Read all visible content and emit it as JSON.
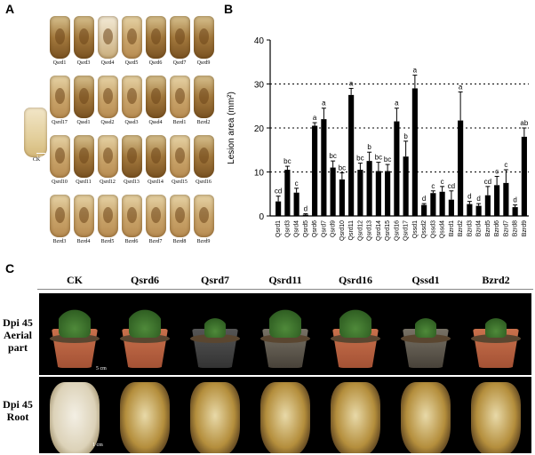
{
  "panels": {
    "a": "A",
    "b": "B",
    "c": "C"
  },
  "panel_a": {
    "tiles": [
      {
        "label": "Qsrd1",
        "style": "dark"
      },
      {
        "label": "Qsrd3",
        "style": "dark"
      },
      {
        "label": "Qsrd4",
        "style": "pale"
      },
      {
        "label": "Qsrd5",
        "style": "normal"
      },
      {
        "label": "Qsrd6",
        "style": "dark"
      },
      {
        "label": "Qsrd7",
        "style": "dark"
      },
      {
        "label": "Qsrd9",
        "style": "dark"
      },
      {
        "label": "Qsrd17",
        "style": "normal"
      },
      {
        "label": "Qssd1",
        "style": "dark"
      },
      {
        "label": "Qssd2",
        "style": "normal"
      },
      {
        "label": "Qssd3",
        "style": "normal"
      },
      {
        "label": "Qssd4",
        "style": "dark"
      },
      {
        "label": "Bzrd1",
        "style": "normal"
      },
      {
        "label": "Bzrd2",
        "style": "dark"
      },
      {
        "label": "Qsrd10",
        "style": "normal"
      },
      {
        "label": "Qsrd11",
        "style": "dark"
      },
      {
        "label": "Qsrd12",
        "style": "normal"
      },
      {
        "label": "Qsrd13",
        "style": "dark"
      },
      {
        "label": "Qsrd14",
        "style": "dark"
      },
      {
        "label": "Qsrd15",
        "style": "normal"
      },
      {
        "label": "Qsrd16",
        "style": "dark"
      },
      {
        "label": "Bzrd3",
        "style": "normal"
      },
      {
        "label": "Bzrd4",
        "style": "normal"
      },
      {
        "label": "Bzrd5",
        "style": "normal"
      },
      {
        "label": "Bzrd6",
        "style": "normal"
      },
      {
        "label": "Bzrd7",
        "style": "normal"
      },
      {
        "label": "Bzrd8",
        "style": "normal"
      },
      {
        "label": "Bzrd9",
        "style": "normal"
      }
    ],
    "ck_label": "CK",
    "ck_scale": "1 cm"
  },
  "chart_data": {
    "type": "bar",
    "ylabel": "Lesion area (mm²)",
    "ylim": [
      0,
      40
    ],
    "yticks": [
      0,
      10,
      20,
      30,
      40
    ],
    "grid": "dotted horizontal at 10, 20, 30",
    "categories": [
      "Qsrd1",
      "Qsrd3",
      "Qsrd4",
      "Qsrd5",
      "Qsrd6",
      "Qsrd7",
      "Qsrd9",
      "Qsrd10",
      "Qsrd11",
      "Qsrd12",
      "Qsrd13",
      "Qsrd14",
      "Qsrd15",
      "Qsrd16",
      "Qsrd17",
      "Qssd1",
      "Qssd2",
      "Qssd3",
      "Qssd4",
      "Bzrd1",
      "Bzrd2",
      "Bzrd3",
      "Bzrd4",
      "Bzrd5",
      "Bzrd6",
      "Bzrd7",
      "Bzrd8",
      "Bzrd9"
    ],
    "values": [
      3.3,
      10.5,
      5.3,
      0.3,
      20.5,
      22,
      11,
      8.3,
      27.5,
      10.5,
      12.5,
      10.2,
      10.2,
      21.5,
      13.5,
      29,
      2.5,
      5.2,
      5.5,
      3.7,
      21.7,
      2.7,
      2.3,
      4.7,
      7,
      7.5,
      2,
      18
    ],
    "errors": [
      1.2,
      0.8,
      1.0,
      0.2,
      0.7,
      2.5,
      1.5,
      1.5,
      1.5,
      1.5,
      2.0,
      2.0,
      1.5,
      3.0,
      3.5,
      3.0,
      0.3,
      0.5,
      1.2,
      2.0,
      6.5,
      0.6,
      0.5,
      2.0,
      2.0,
      3.0,
      0.5,
      2.0
    ],
    "letters": [
      "cd",
      "bc",
      "c",
      "d",
      "a",
      "a",
      "bc",
      "bc",
      "a",
      "bc",
      "b",
      "bc",
      "bc",
      "a",
      "b",
      "a",
      "d",
      "c",
      "c",
      "cd",
      "a",
      "d",
      "d",
      "cd",
      "c",
      "c",
      "d",
      "ab"
    ]
  },
  "panel_c": {
    "columns": [
      "CK",
      "Qsrd6",
      "Qsrd7",
      "Qsrd11",
      "Qsrd16",
      "Qssd1",
      "Bzrd2"
    ],
    "row1_label_line1": "Dpi 45",
    "row1_label_line2": "Aerial part",
    "row2_label_line1": "Dpi 45",
    "row2_label_line2": "Root",
    "scale_top": "5 cm",
    "scale_bottom": "1 cm"
  }
}
